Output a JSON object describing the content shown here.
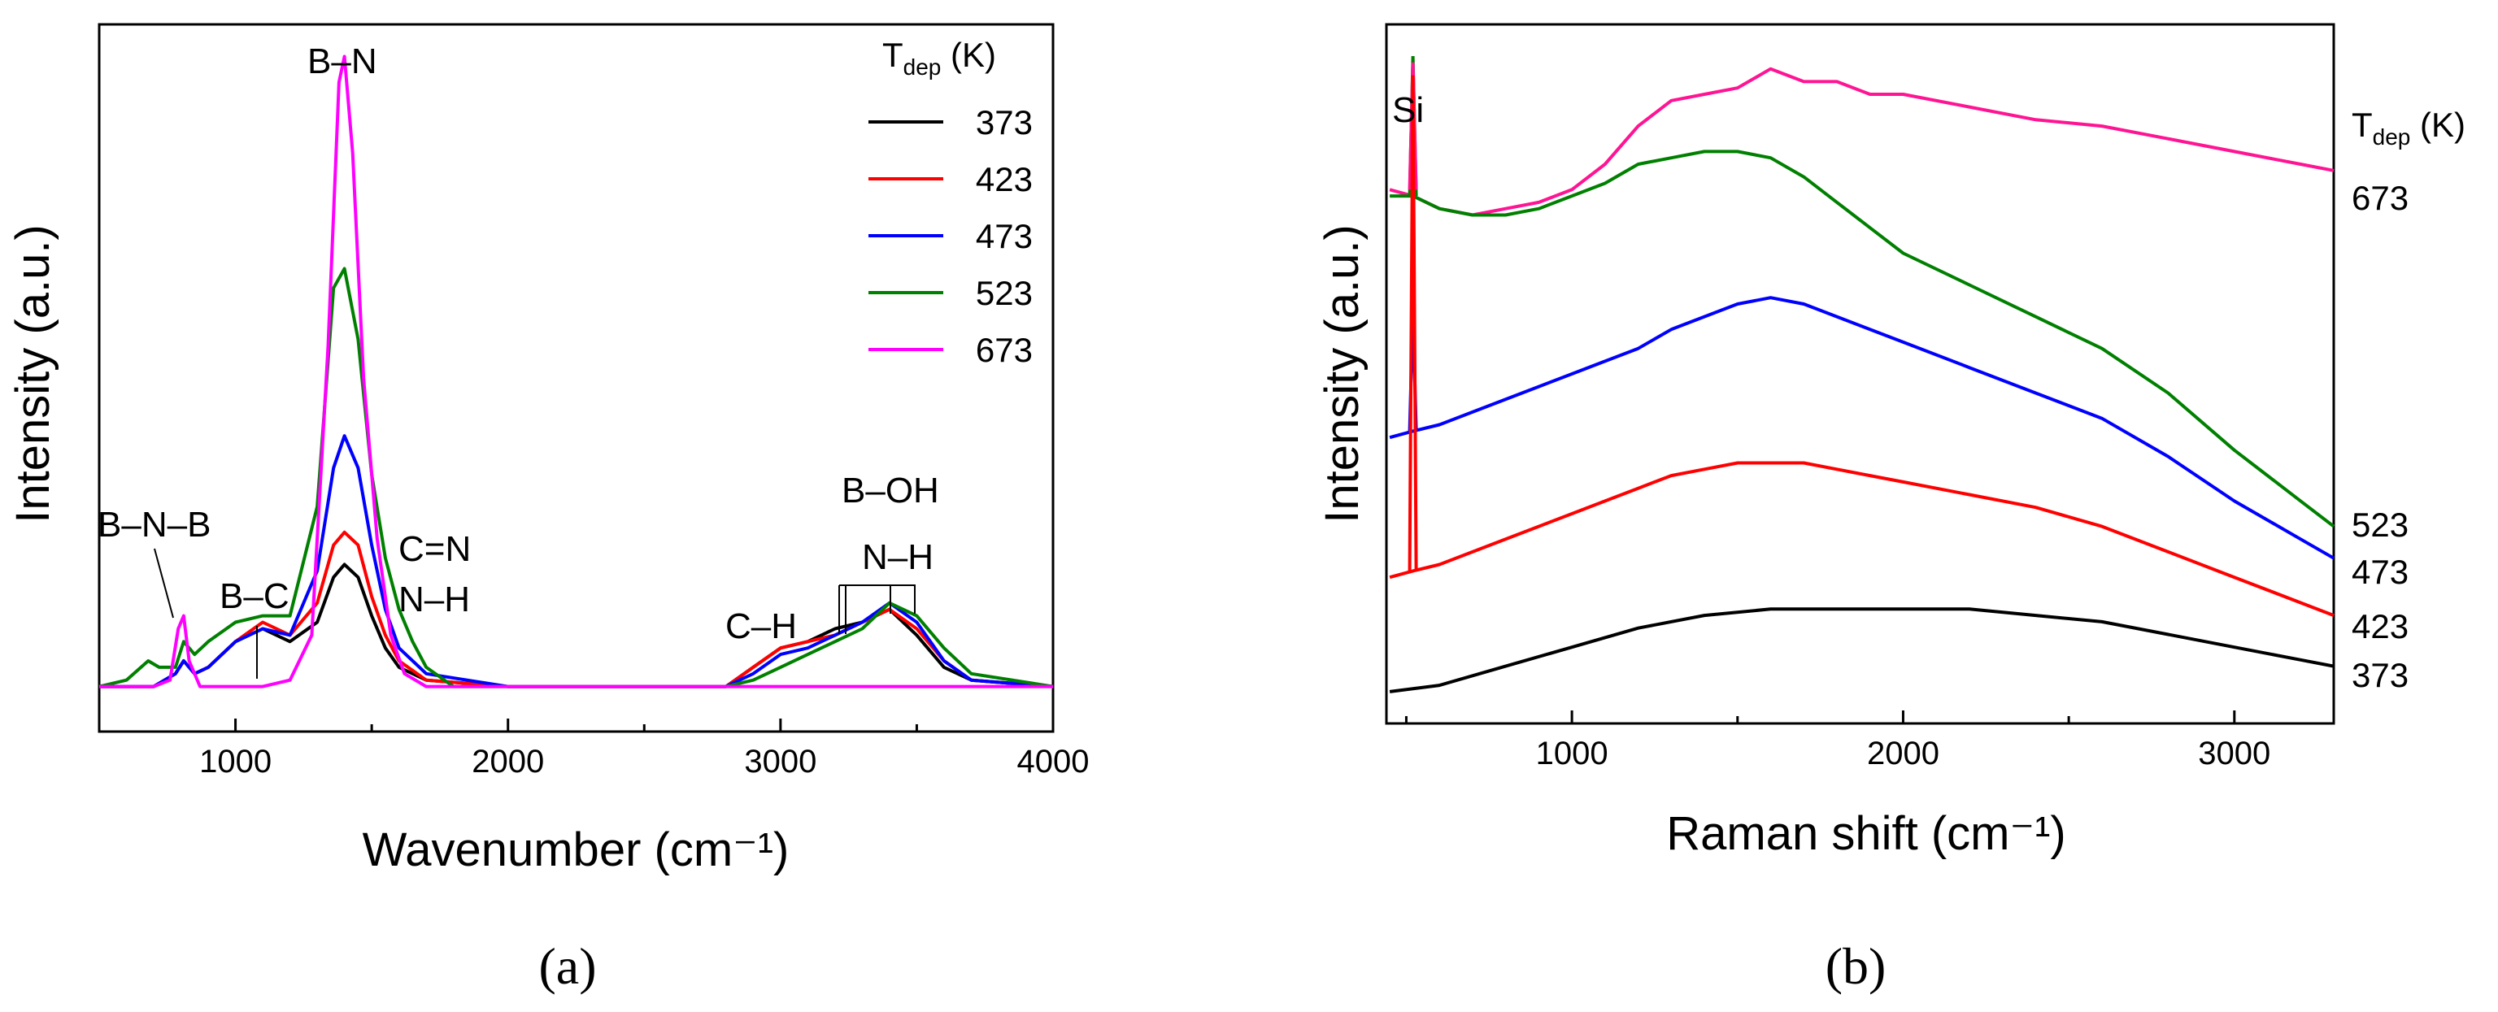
{
  "chart_data": [
    {
      "type": "line",
      "panel_label": "(a)",
      "xlabel": "Wavenumber (cm⁻¹)",
      "ylabel": "Intensity (a.u.)",
      "xlim": [
        500,
        4000
      ],
      "ylim": [
        -0.05,
        1.05
      ],
      "x_ticks": [
        1000,
        2000,
        3000,
        4000
      ],
      "y_ticks_shown": false,
      "legend_title_main": "T",
      "legend_title_sub": "dep",
      "legend_title_unit": " (K)",
      "legend_position": "top-right",
      "annotations": [
        "B–N",
        "B–N–B",
        "B–C",
        "C=N",
        "N–H",
        "C–H",
        "B–OH",
        "N–H"
      ],
      "series": [
        {
          "name": "373",
          "color": "#000000",
          "points": [
            [
              500,
              0.02
            ],
            [
              700,
              0.02
            ],
            [
              780,
              0.04
            ],
            [
              810,
              0.06
            ],
            [
              850,
              0.04
            ],
            [
              900,
              0.05
            ],
            [
              1000,
              0.09
            ],
            [
              1100,
              0.11
            ],
            [
              1200,
              0.09
            ],
            [
              1300,
              0.12
            ],
            [
              1360,
              0.19
            ],
            [
              1400,
              0.21
            ],
            [
              1450,
              0.19
            ],
            [
              1500,
              0.13
            ],
            [
              1550,
              0.08
            ],
            [
              1600,
              0.05
            ],
            [
              1700,
              0.03
            ],
            [
              2000,
              0.02
            ],
            [
              2800,
              0.02
            ],
            [
              2900,
              0.05
            ],
            [
              3000,
              0.08
            ],
            [
              3100,
              0.09
            ],
            [
              3200,
              0.11
            ],
            [
              3300,
              0.12
            ],
            [
              3400,
              0.14
            ],
            [
              3500,
              0.1
            ],
            [
              3600,
              0.05
            ],
            [
              3700,
              0.03
            ],
            [
              4000,
              0.02
            ]
          ]
        },
        {
          "name": "423",
          "color": "#ff0000",
          "points": [
            [
              500,
              0.02
            ],
            [
              700,
              0.02
            ],
            [
              780,
              0.04
            ],
            [
              810,
              0.06
            ],
            [
              850,
              0.04
            ],
            [
              900,
              0.05
            ],
            [
              1000,
              0.09
            ],
            [
              1100,
              0.12
            ],
            [
              1200,
              0.1
            ],
            [
              1300,
              0.15
            ],
            [
              1360,
              0.24
            ],
            [
              1400,
              0.26
            ],
            [
              1450,
              0.24
            ],
            [
              1500,
              0.16
            ],
            [
              1550,
              0.1
            ],
            [
              1600,
              0.06
            ],
            [
              1700,
              0.03
            ],
            [
              2000,
              0.02
            ],
            [
              2800,
              0.02
            ],
            [
              2900,
              0.05
            ],
            [
              3000,
              0.08
            ],
            [
              3100,
              0.09
            ],
            [
              3200,
              0.1
            ],
            [
              3300,
              0.12
            ],
            [
              3400,
              0.14
            ],
            [
              3500,
              0.11
            ],
            [
              3600,
              0.06
            ],
            [
              3700,
              0.03
            ],
            [
              4000,
              0.02
            ]
          ]
        },
        {
          "name": "473",
          "color": "#0000ff",
          "points": [
            [
              500,
              0.02
            ],
            [
              700,
              0.02
            ],
            [
              780,
              0.04
            ],
            [
              810,
              0.06
            ],
            [
              850,
              0.04
            ],
            [
              900,
              0.05
            ],
            [
              1000,
              0.09
            ],
            [
              1100,
              0.11
            ],
            [
              1200,
              0.1
            ],
            [
              1300,
              0.2
            ],
            [
              1360,
              0.36
            ],
            [
              1400,
              0.41
            ],
            [
              1450,
              0.36
            ],
            [
              1500,
              0.24
            ],
            [
              1550,
              0.14
            ],
            [
              1600,
              0.08
            ],
            [
              1700,
              0.04
            ],
            [
              2000,
              0.02
            ],
            [
              2800,
              0.02
            ],
            [
              2900,
              0.04
            ],
            [
              3000,
              0.07
            ],
            [
              3100,
              0.08
            ],
            [
              3200,
              0.1
            ],
            [
              3300,
              0.12
            ],
            [
              3400,
              0.15
            ],
            [
              3500,
              0.12
            ],
            [
              3600,
              0.06
            ],
            [
              3700,
              0.03
            ],
            [
              4000,
              0.02
            ]
          ]
        },
        {
          "name": "523",
          "color": "#008000",
          "points": [
            [
              500,
              0.02
            ],
            [
              600,
              0.03
            ],
            [
              680,
              0.06
            ],
            [
              720,
              0.05
            ],
            [
              780,
              0.05
            ],
            [
              810,
              0.09
            ],
            [
              850,
              0.07
            ],
            [
              900,
              0.09
            ],
            [
              1000,
              0.12
            ],
            [
              1100,
              0.13
            ],
            [
              1200,
              0.13
            ],
            [
              1300,
              0.3
            ],
            [
              1360,
              0.64
            ],
            [
              1400,
              0.67
            ],
            [
              1450,
              0.56
            ],
            [
              1500,
              0.35
            ],
            [
              1550,
              0.22
            ],
            [
              1600,
              0.14
            ],
            [
              1650,
              0.09
            ],
            [
              1700,
              0.05
            ],
            [
              1800,
              0.02
            ],
            [
              2000,
              0.02
            ],
            [
              2800,
              0.02
            ],
            [
              2900,
              0.03
            ],
            [
              3000,
              0.05
            ],
            [
              3100,
              0.07
            ],
            [
              3200,
              0.09
            ],
            [
              3300,
              0.11
            ],
            [
              3400,
              0.15
            ],
            [
              3500,
              0.13
            ],
            [
              3600,
              0.08
            ],
            [
              3700,
              0.04
            ],
            [
              4000,
              0.02
            ]
          ]
        },
        {
          "name": "673",
          "color": "#ff00ff",
          "points": [
            [
              500,
              0.02
            ],
            [
              700,
              0.02
            ],
            [
              760,
              0.03
            ],
            [
              790,
              0.11
            ],
            [
              810,
              0.13
            ],
            [
              830,
              0.06
            ],
            [
              870,
              0.02
            ],
            [
              1100,
              0.02
            ],
            [
              1200,
              0.03
            ],
            [
              1280,
              0.1
            ],
            [
              1340,
              0.55
            ],
            [
              1380,
              0.96
            ],
            [
              1400,
              1.0
            ],
            [
              1430,
              0.85
            ],
            [
              1470,
              0.5
            ],
            [
              1520,
              0.25
            ],
            [
              1570,
              0.1
            ],
            [
              1620,
              0.04
            ],
            [
              1700,
              0.02
            ],
            [
              4000,
              0.02
            ]
          ]
        }
      ]
    },
    {
      "type": "line",
      "panel_label": "(b)",
      "xlabel": "Raman shift (cm⁻¹)",
      "ylabel": "Intensity (a.u.)",
      "xlim": [
        440,
        3300
      ],
      "ylim": [
        -0.05,
        1.05
      ],
      "x_ticks": [
        1000,
        2000,
        3000
      ],
      "y_ticks_shown": false,
      "legend_title_main": "T",
      "legend_title_sub": "dep",
      "legend_title_unit": " (K)",
      "annotations": [
        "Si"
      ],
      "series": [
        {
          "name": "673",
          "color": "#ff1493",
          "points": [
            [
              450,
              0.79
            ],
            [
              520,
              0.78
            ],
            [
              600,
              0.76
            ],
            [
              700,
              0.75
            ],
            [
              800,
              0.76
            ],
            [
              900,
              0.77
            ],
            [
              1000,
              0.79
            ],
            [
              1100,
              0.83
            ],
            [
              1200,
              0.89
            ],
            [
              1300,
              0.93
            ],
            [
              1400,
              0.94
            ],
            [
              1500,
              0.95
            ],
            [
              1600,
              0.98
            ],
            [
              1700,
              0.96
            ],
            [
              1800,
              0.96
            ],
            [
              1900,
              0.94
            ],
            [
              2000,
              0.94
            ],
            [
              2200,
              0.92
            ],
            [
              2400,
              0.9
            ],
            [
              2600,
              0.89
            ],
            [
              2800,
              0.87
            ],
            [
              3000,
              0.85
            ],
            [
              3200,
              0.83
            ],
            [
              3300,
              0.82
            ]
          ]
        },
        {
          "name": "523",
          "color": "#008000",
          "points": [
            [
              450,
              0.78
            ],
            [
              520,
              0.78
            ],
            [
              600,
              0.76
            ],
            [
              700,
              0.75
            ],
            [
              800,
              0.75
            ],
            [
              900,
              0.76
            ],
            [
              1000,
              0.78
            ],
            [
              1100,
              0.8
            ],
            [
              1200,
              0.83
            ],
            [
              1300,
              0.84
            ],
            [
              1400,
              0.85
            ],
            [
              1500,
              0.85
            ],
            [
              1600,
              0.84
            ],
            [
              1700,
              0.81
            ],
            [
              1800,
              0.77
            ],
            [
              1900,
              0.73
            ],
            [
              2000,
              0.69
            ],
            [
              2200,
              0.64
            ],
            [
              2400,
              0.59
            ],
            [
              2600,
              0.54
            ],
            [
              2800,
              0.47
            ],
            [
              3000,
              0.38
            ],
            [
              3200,
              0.3
            ],
            [
              3300,
              0.26
            ]
          ]
        },
        {
          "name": "473",
          "color": "#0000ff",
          "points": [
            [
              450,
              0.4
            ],
            [
              520,
              0.41
            ],
            [
              600,
              0.42
            ],
            [
              700,
              0.44
            ],
            [
              800,
              0.46
            ],
            [
              900,
              0.48
            ],
            [
              1000,
              0.5
            ],
            [
              1100,
              0.52
            ],
            [
              1200,
              0.54
            ],
            [
              1300,
              0.57
            ],
            [
              1400,
              0.59
            ],
            [
              1500,
              0.61
            ],
            [
              1600,
              0.62
            ],
            [
              1700,
              0.61
            ],
            [
              1800,
              0.59
            ],
            [
              1900,
              0.57
            ],
            [
              2000,
              0.55
            ],
            [
              2200,
              0.51
            ],
            [
              2400,
              0.47
            ],
            [
              2600,
              0.43
            ],
            [
              2800,
              0.37
            ],
            [
              3000,
              0.3
            ],
            [
              3200,
              0.24
            ],
            [
              3300,
              0.21
            ]
          ]
        },
        {
          "name": "423",
          "color": "#ff0000",
          "points": [
            [
              450,
              0.18
            ],
            [
              520,
              0.19
            ],
            [
              600,
              0.2
            ],
            [
              700,
              0.22
            ],
            [
              800,
              0.24
            ],
            [
              900,
              0.26
            ],
            [
              1000,
              0.28
            ],
            [
              1100,
              0.3
            ],
            [
              1200,
              0.32
            ],
            [
              1300,
              0.34
            ],
            [
              1400,
              0.35
            ],
            [
              1500,
              0.36
            ],
            [
              1600,
              0.36
            ],
            [
              1700,
              0.36
            ],
            [
              1800,
              0.35
            ],
            [
              1900,
              0.34
            ],
            [
              2000,
              0.33
            ],
            [
              2200,
              0.31
            ],
            [
              2400,
              0.29
            ],
            [
              2600,
              0.26
            ],
            [
              2800,
              0.22
            ],
            [
              3000,
              0.18
            ],
            [
              3200,
              0.14
            ],
            [
              3300,
              0.12
            ]
          ]
        },
        {
          "name": "373",
          "color": "#000000",
          "points": [
            [
              450,
              0.0
            ],
            [
              600,
              0.01
            ],
            [
              800,
              0.04
            ],
            [
              1000,
              0.07
            ],
            [
              1200,
              0.1
            ],
            [
              1400,
              0.12
            ],
            [
              1600,
              0.13
            ],
            [
              1800,
              0.13
            ],
            [
              2000,
              0.13
            ],
            [
              2200,
              0.13
            ],
            [
              2400,
              0.12
            ],
            [
              2600,
              0.11
            ],
            [
              2800,
              0.09
            ],
            [
              3000,
              0.07
            ],
            [
              3200,
              0.05
            ],
            [
              3300,
              0.04
            ]
          ]
        }
      ]
    }
  ]
}
